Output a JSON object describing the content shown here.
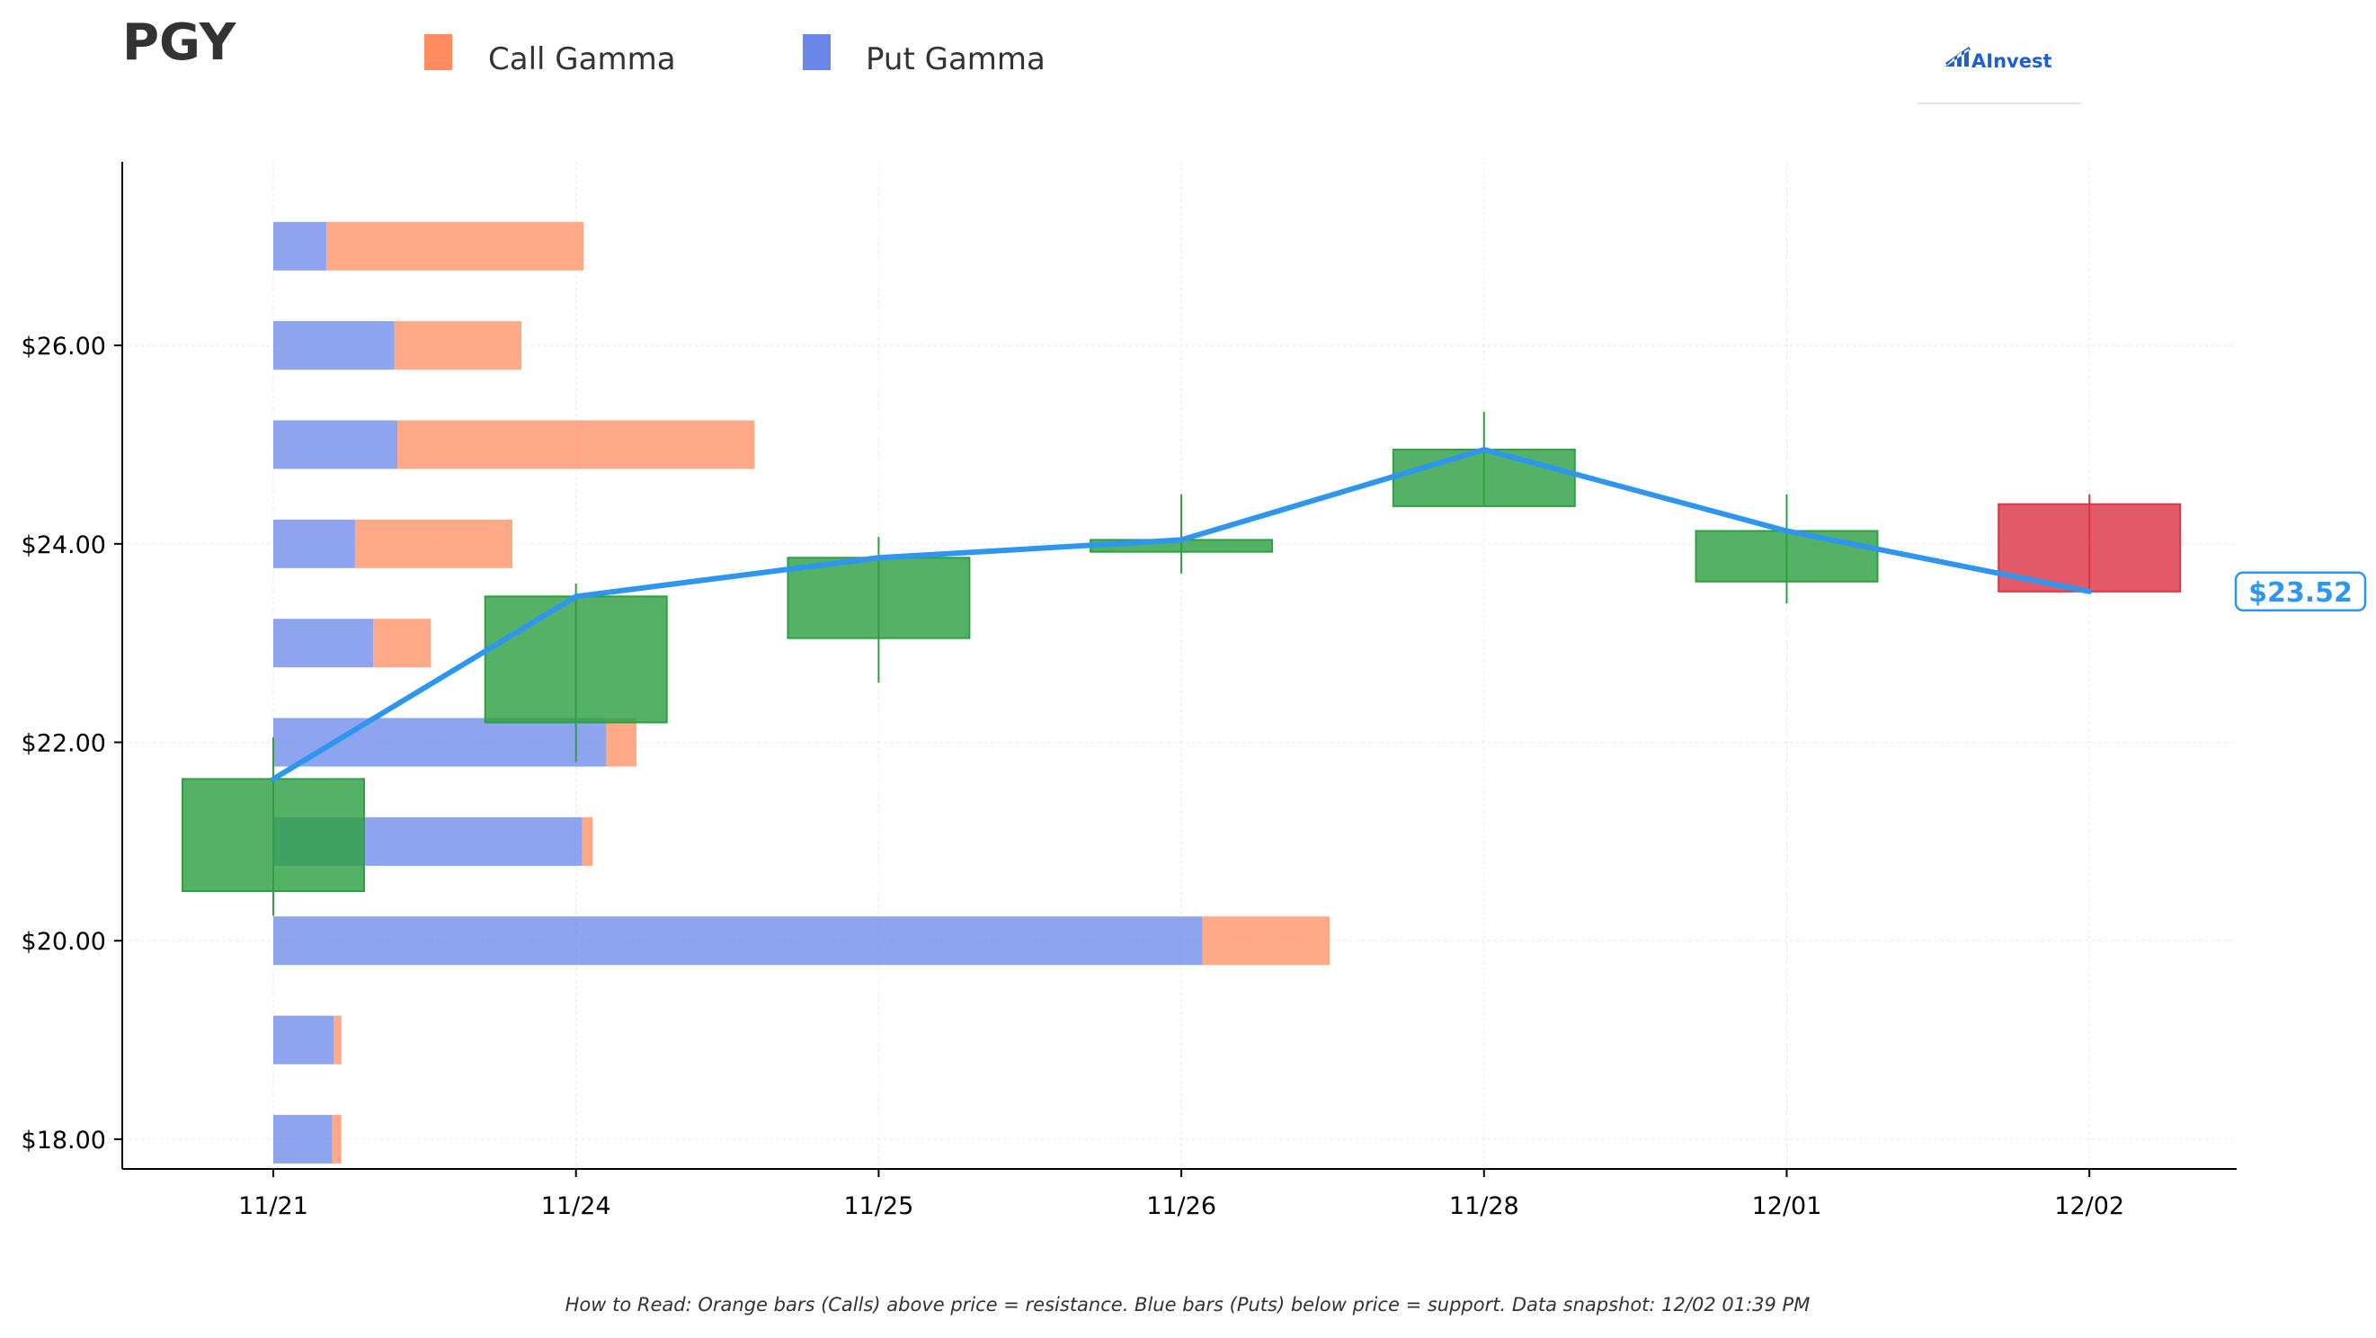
{
  "title": "PGY",
  "brand": {
    "name": "AInvest",
    "color": "#1a5fd6"
  },
  "footer": "How to Read: Orange bars (Calls) above price = resistance. Blue bars (Puts) below price = support. Data snapshot: 12/02 01:39 PM",
  "colors": {
    "call": "#ff8c5f",
    "put": "#6a86e8",
    "up": "#2ea043",
    "down": "#dc3545",
    "line": "#2f96f0",
    "axis": "#000000",
    "grid": "#e6e6e6",
    "text": "#333333"
  },
  "chart_data": {
    "type": "candlestick with horizontal gamma bars",
    "legend": {
      "position": "top-left",
      "entries": [
        "Call Gamma",
        "Put Gamma"
      ]
    },
    "grid": true,
    "x_categories": [
      "11/21",
      "11/24",
      "11/25",
      "11/26",
      "11/28",
      "12/01",
      "12/02"
    ],
    "ylim": [
      17.7,
      27.85
    ],
    "y_ticks": [
      18,
      20,
      22,
      24,
      26
    ],
    "y_tick_labels": [
      "$18.00",
      "$20.00",
      "$22.00",
      "$24.00",
      "$26.00"
    ],
    "candles": [
      {
        "date": "11/21",
        "open": 20.5,
        "high": 22.05,
        "low": 20.25,
        "close": 21.63
      },
      {
        "date": "11/24",
        "open": 22.2,
        "high": 23.6,
        "low": 21.8,
        "close": 23.47
      },
      {
        "date": "11/25",
        "open": 23.05,
        "high": 24.07,
        "low": 22.6,
        "close": 23.86
      },
      {
        "date": "11/26",
        "open": 23.92,
        "high": 24.5,
        "low": 23.7,
        "close": 24.04
      },
      {
        "date": "11/28",
        "open": 24.38,
        "high": 25.33,
        "low": 24.38,
        "close": 24.95
      },
      {
        "date": "12/01",
        "open": 23.62,
        "high": 24.5,
        "low": 23.4,
        "close": 24.13
      },
      {
        "date": "12/02",
        "open": 24.4,
        "high": 24.5,
        "low": 23.52,
        "close": 23.52
      }
    ],
    "gamma_bars": [
      {
        "strike": 27.0,
        "put": 0.175,
        "call": 0.85
      },
      {
        "strike": 26.0,
        "put": 0.4,
        "call": 0.42
      },
      {
        "strike": 25.0,
        "put": 0.41,
        "call": 1.18
      },
      {
        "strike": 24.0,
        "put": 0.27,
        "call": 0.52
      },
      {
        "strike": 23.0,
        "put": 0.33,
        "call": 0.19
      },
      {
        "strike": 22.0,
        "put": 1.1,
        "call": 0.1
      },
      {
        "strike": 21.0,
        "put": 1.02,
        "call": 0.035
      },
      {
        "strike": 20.0,
        "put": 3.07,
        "call": 0.42
      },
      {
        "strike": 19.0,
        "put": 0.2,
        "call": 0.025
      },
      {
        "strike": 18.0,
        "put": 0.195,
        "call": 0.03
      }
    ],
    "last_price": 23.52,
    "last_price_label": "$23.52"
  }
}
